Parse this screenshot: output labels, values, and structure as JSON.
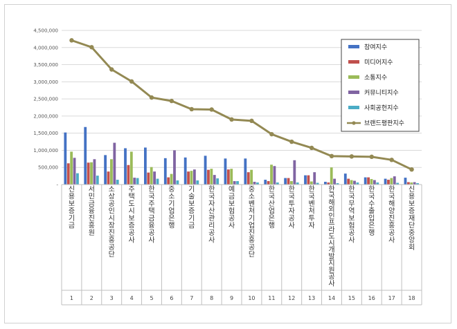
{
  "chart_data": {
    "type": "bar",
    "categories": [
      "신용보증기금",
      "서민금융진흥원",
      "소상공인시장진흥공단",
      "주택도시보증공사",
      "한국주택금융공사",
      "중소기업은행",
      "기술보증기금",
      "한국자산관리공사",
      "예금보험공사",
      "중소벤처기업진흥공단",
      "한국산업은행",
      "한국투자공사",
      "한국벤처투자",
      "한국해외인프라도시개발지원공사",
      "한국무역보험공사",
      "한국수출입은행",
      "한국해양진흥공사",
      "신용보증재단중앙회"
    ],
    "numbers": [
      "1",
      "2",
      "3",
      "4",
      "5",
      "6",
      "7",
      "8",
      "9",
      "10",
      "11",
      "12",
      "13",
      "14",
      "15",
      "16",
      "17",
      "18"
    ],
    "ylim": [
      0,
      4500000
    ],
    "yticks": [
      0,
      500000,
      1000000,
      1500000,
      2000000,
      2500000,
      3000000,
      3500000,
      4000000,
      4500000
    ],
    "ytick_labels": [
      "-",
      "500,000",
      "1,000,000",
      "1,500,000",
      "2,000,000",
      "2,500,000",
      "3,000,000",
      "3,500,000",
      "4,000,000",
      "4,500,000"
    ],
    "series": [
      {
        "name": "참여지수",
        "type": "bar",
        "color": "#4472c4",
        "values": [
          1520000,
          1680000,
          860000,
          1060000,
          1080000,
          770000,
          790000,
          840000,
          760000,
          760000,
          140000,
          190000,
          270000,
          80000,
          320000,
          210000,
          170000,
          200000
        ]
      },
      {
        "name": "미디어지수",
        "type": "bar",
        "color": "#c0504d",
        "values": [
          620000,
          640000,
          380000,
          570000,
          350000,
          210000,
          380000,
          430000,
          440000,
          360000,
          100000,
          190000,
          270000,
          60000,
          170000,
          210000,
          140000,
          70000
        ]
      },
      {
        "name": "소통지수",
        "type": "bar",
        "color": "#9bbb59",
        "values": [
          960000,
          650000,
          740000,
          960000,
          510000,
          310000,
          400000,
          460000,
          460000,
          430000,
          580000,
          100000,
          90000,
          500000,
          130000,
          160000,
          190000,
          60000
        ]
      },
      {
        "name": "커뮤니티지수",
        "type": "bar",
        "color": "#8064a2",
        "values": [
          780000,
          740000,
          1220000,
          200000,
          380000,
          1000000,
          440000,
          280000,
          100000,
          80000,
          540000,
          710000,
          360000,
          170000,
          110000,
          130000,
          240000,
          70000
        ]
      },
      {
        "name": "사회공헌지수",
        "type": "bar",
        "color": "#4bacc6",
        "values": [
          330000,
          260000,
          140000,
          190000,
          170000,
          120000,
          120000,
          180000,
          100000,
          60000,
          60000,
          60000,
          50000,
          40000,
          60000,
          60000,
          50000,
          40000
        ]
      },
      {
        "name": "브랜드평판지수",
        "type": "line",
        "color": "#938953",
        "values": [
          4210000,
          4010000,
          3360000,
          3010000,
          2540000,
          2440000,
          2200000,
          2190000,
          1900000,
          1860000,
          1470000,
          1250000,
          1070000,
          830000,
          820000,
          810000,
          720000,
          440000
        ]
      }
    ]
  }
}
